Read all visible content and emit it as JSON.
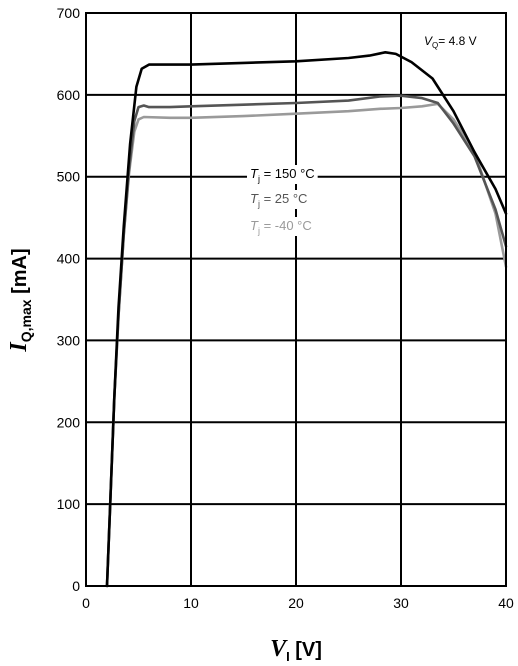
{
  "chart_data": {
    "type": "line",
    "xlabel": {
      "main": "V",
      "sub": "I",
      "unit": " [V]"
    },
    "ylabel": {
      "main": "I",
      "sub": "Q,max",
      "unit": " [mA]"
    },
    "xlim": [
      0,
      40
    ],
    "ylim": [
      0,
      700
    ],
    "xticks": [
      0,
      10,
      20,
      30,
      40
    ],
    "yticks": [
      0,
      100,
      200,
      300,
      400,
      500,
      600,
      700
    ],
    "xtick_labels": [
      "0",
      "10",
      "20",
      "30",
      "40"
    ],
    "ytick_labels": [
      "0",
      "100",
      "200",
      "300",
      "400",
      "500",
      "600",
      "700"
    ],
    "grid": true,
    "annotation": {
      "var": "V",
      "sub": "Q",
      "value": "= 4.8 V"
    },
    "legend_placement": "center",
    "series": [
      {
        "name": "Tj = 150 °C",
        "label": {
          "var": "T",
          "sub": "j",
          "value": " = 150 °C"
        },
        "color": "#000000",
        "points": [
          [
            2.0,
            0
          ],
          [
            2.3,
            100
          ],
          [
            2.7,
            230
          ],
          [
            3.1,
            340
          ],
          [
            3.6,
            440
          ],
          [
            4.2,
            540
          ],
          [
            4.8,
            610
          ],
          [
            5.3,
            632
          ],
          [
            6.0,
            637
          ],
          [
            8.0,
            637
          ],
          [
            10,
            637
          ],
          [
            15,
            639
          ],
          [
            20,
            641
          ],
          [
            25,
            645
          ],
          [
            27,
            648
          ],
          [
            28.5,
            652
          ],
          [
            29.5,
            650
          ],
          [
            31,
            640
          ],
          [
            33,
            620
          ],
          [
            35,
            580
          ],
          [
            37,
            530
          ],
          [
            39,
            485
          ],
          [
            40,
            455
          ]
        ]
      },
      {
        "name": "Tj = 25 °C",
        "label": {
          "var": "T",
          "sub": "j",
          "value": " = 25 °C"
        },
        "color": "#555555",
        "points": [
          [
            2.0,
            0
          ],
          [
            2.3,
            100
          ],
          [
            2.7,
            230
          ],
          [
            3.1,
            330
          ],
          [
            3.6,
            430
          ],
          [
            4.1,
            510
          ],
          [
            4.6,
            568
          ],
          [
            5.0,
            585
          ],
          [
            5.5,
            587
          ],
          [
            6.0,
            585
          ],
          [
            8.0,
            585
          ],
          [
            10,
            586
          ],
          [
            15,
            588
          ],
          [
            20,
            590
          ],
          [
            25,
            593
          ],
          [
            28,
            598
          ],
          [
            30,
            599
          ],
          [
            32,
            596
          ],
          [
            33.5,
            590
          ],
          [
            35,
            565
          ],
          [
            37,
            525
          ],
          [
            39,
            460
          ],
          [
            40,
            415
          ]
        ]
      },
      {
        "name": "Tj = -40 °C",
        "label": {
          "var": "T",
          "sub": "j",
          "value": " = -40 °C"
        },
        "color": "#9a9a9a",
        "points": [
          [
            2.0,
            0
          ],
          [
            2.3,
            100
          ],
          [
            2.7,
            230
          ],
          [
            3.1,
            330
          ],
          [
            3.6,
            430
          ],
          [
            4.1,
            505
          ],
          [
            4.6,
            555
          ],
          [
            5.0,
            570
          ],
          [
            5.5,
            573
          ],
          [
            8.0,
            572
          ],
          [
            10,
            572
          ],
          [
            15,
            574
          ],
          [
            20,
            577
          ],
          [
            25,
            580
          ],
          [
            28,
            583
          ],
          [
            30,
            584
          ],
          [
            32,
            586
          ],
          [
            33.5,
            589
          ],
          [
            35,
            570
          ],
          [
            37,
            530
          ],
          [
            39,
            455
          ],
          [
            40,
            390
          ]
        ]
      }
    ]
  }
}
